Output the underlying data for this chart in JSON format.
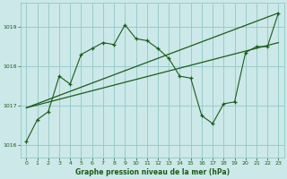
{
  "title": "Graphe pression niveau de la mer (hPa)",
  "bg_color": "#cce8e8",
  "grid_color": "#99cccc",
  "line_color": "#1a5c1a",
  "marker_color": "#1a5c1a",
  "xlim": [
    -0.5,
    23.5
  ],
  "ylim": [
    1015.7,
    1019.6
  ],
  "yticks": [
    1016,
    1017,
    1018,
    1019
  ],
  "xticks": [
    0,
    1,
    2,
    3,
    4,
    5,
    6,
    7,
    8,
    9,
    10,
    11,
    12,
    13,
    14,
    15,
    16,
    17,
    18,
    19,
    20,
    21,
    22,
    23
  ],
  "series1_x": [
    0,
    1,
    2,
    3,
    4,
    5,
    6,
    7,
    8,
    9,
    10,
    11,
    12,
    13,
    14,
    15,
    16,
    17,
    18,
    19,
    20,
    21,
    22,
    23
  ],
  "series1_y": [
    1016.1,
    1016.65,
    1016.85,
    1017.75,
    1017.55,
    1018.3,
    1018.45,
    1018.6,
    1018.55,
    1019.05,
    1018.7,
    1018.65,
    1018.45,
    1018.2,
    1017.75,
    1017.7,
    1016.75,
    1016.55,
    1017.05,
    1017.1,
    1018.35,
    1018.5,
    1018.5,
    1019.35
  ],
  "trend1_x": [
    0,
    23
  ],
  "trend1_y": [
    1016.95,
    1019.35
  ],
  "trend2_x": [
    0,
    23
  ],
  "trend2_y": [
    1016.95,
    1018.6
  ]
}
